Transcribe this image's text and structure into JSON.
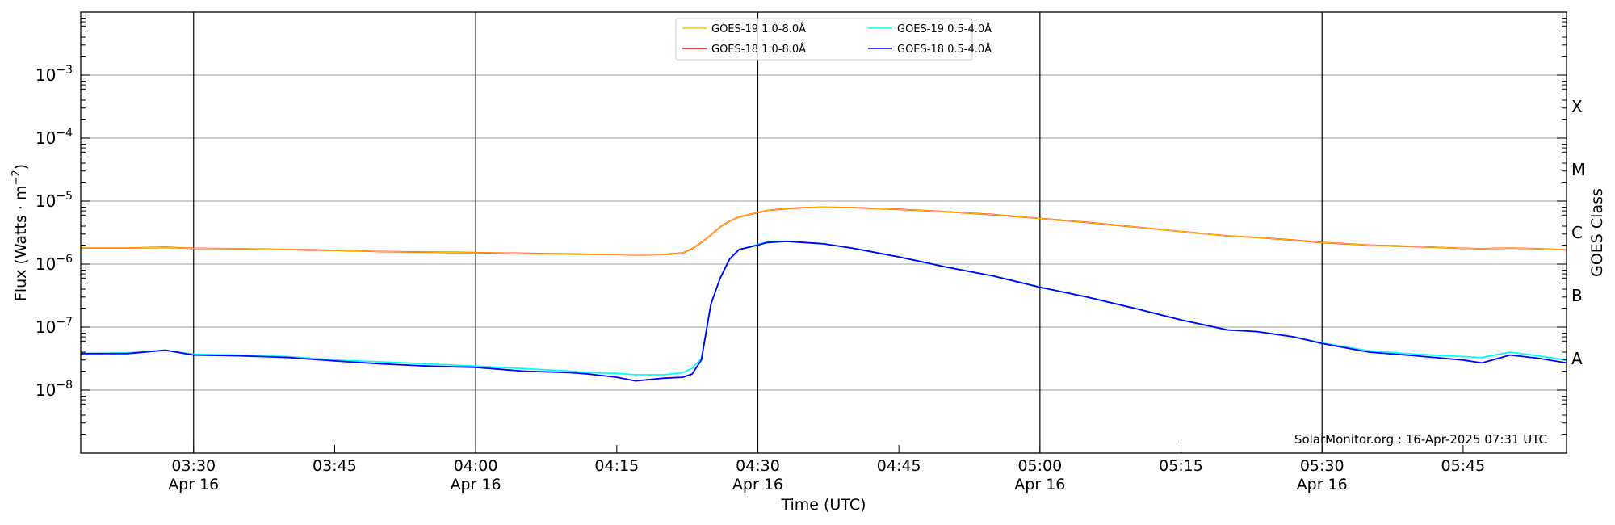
{
  "chart_data": {
    "type": "line",
    "title": "",
    "xlabel": "Time (UTC)",
    "ylabel": "Flux (Watts · m",
    "ylabel_sup": "−2",
    "ylabel_close": ")",
    "y2label": "GOES Class",
    "yscale": "log",
    "ylim": [
      1e-09,
      0.01
    ],
    "xlim_minutes": [
      198,
      356
    ],
    "grid": "horizontal",
    "legend_position": "top-center",
    "yticks": [
      {
        "exp": -3,
        "base": "10",
        "sup": "−3"
      },
      {
        "exp": -4,
        "base": "10",
        "sup": "−4"
      },
      {
        "exp": -5,
        "base": "10",
        "sup": "−5"
      },
      {
        "exp": -6,
        "base": "10",
        "sup": "−6"
      },
      {
        "exp": -7,
        "base": "10",
        "sup": "−7"
      },
      {
        "exp": -8,
        "base": "10",
        "sup": "−8"
      }
    ],
    "classes": [
      {
        "label": "X",
        "exp": -3.5
      },
      {
        "label": "M",
        "exp": -4.5
      },
      {
        "label": "C",
        "exp": -5.5
      },
      {
        "label": "B",
        "exp": -6.5
      },
      {
        "label": "A",
        "exp": -7.5
      }
    ],
    "xticks": [
      {
        "t": 210,
        "label": "03:30",
        "date": "Apr 16",
        "major": true
      },
      {
        "t": 225,
        "label": "03:45",
        "date": "",
        "major": false
      },
      {
        "t": 240,
        "label": "04:00",
        "date": "Apr 16",
        "major": true
      },
      {
        "t": 255,
        "label": "04:15",
        "date": "",
        "major": false
      },
      {
        "t": 270,
        "label": "04:30",
        "date": "Apr 16",
        "major": true
      },
      {
        "t": 285,
        "label": "04:45",
        "date": "",
        "major": false
      },
      {
        "t": 300,
        "label": "05:00",
        "date": "Apr 16",
        "major": true
      },
      {
        "t": 315,
        "label": "05:15",
        "date": "",
        "major": false
      },
      {
        "t": 330,
        "label": "05:30",
        "date": "Apr 16",
        "major": true
      },
      {
        "t": 345,
        "label": "05:45",
        "date": "",
        "major": false
      }
    ],
    "x_minutes": [
      198,
      203,
      207,
      210,
      215,
      220,
      225,
      230,
      235,
      240,
      245,
      250,
      252,
      255,
      257,
      260,
      262,
      263,
      264,
      265,
      266,
      267,
      268,
      270,
      271,
      273,
      275,
      277,
      280,
      285,
      290,
      295,
      300,
      305,
      310,
      315,
      320,
      323,
      327,
      330,
      335,
      340,
      345,
      347,
      350,
      353,
      356
    ],
    "series": [
      {
        "name": "GOES-19 1.0-8.0Å",
        "color": "#ffc400",
        "values": [
          1.8e-06,
          1.8e-06,
          1.85e-06,
          1.78e-06,
          1.75e-06,
          1.7e-06,
          1.65e-06,
          1.58e-06,
          1.55e-06,
          1.52e-06,
          1.48e-06,
          1.45e-06,
          1.43e-06,
          1.42e-06,
          1.4e-06,
          1.42e-06,
          1.5e-06,
          1.75e-06,
          2.2e-06,
          2.9e-06,
          3.9e-06,
          4.8e-06,
          5.6e-06,
          6.6e-06,
          7.1e-06,
          7.6e-06,
          7.9e-06,
          8e-06,
          7.9e-06,
          7.4e-06,
          6.8e-06,
          6.1e-06,
          5.3e-06,
          4.6e-06,
          3.9e-06,
          3.3e-06,
          2.8e-06,
          2.65e-06,
          2.4e-06,
          2.2e-06,
          2e-06,
          1.9e-06,
          1.78e-06,
          1.75e-06,
          1.8e-06,
          1.75e-06,
          1.68e-06
        ]
      },
      {
        "name": "GOES-18 1.0-8.0Å",
        "color": "#ff0000",
        "values": [
          1.8e-06,
          1.8e-06,
          1.85e-06,
          1.78e-06,
          1.75e-06,
          1.7e-06,
          1.65e-06,
          1.58e-06,
          1.55e-06,
          1.52e-06,
          1.48e-06,
          1.45e-06,
          1.43e-06,
          1.42e-06,
          1.4e-06,
          1.42e-06,
          1.5e-06,
          1.75e-06,
          2.2e-06,
          2.9e-06,
          3.9e-06,
          4.8e-06,
          5.6e-06,
          6.6e-06,
          7.1e-06,
          7.6e-06,
          7.9e-06,
          8e-06,
          7.9e-06,
          7.4e-06,
          6.8e-06,
          6.1e-06,
          5.3e-06,
          4.6e-06,
          3.9e-06,
          3.3e-06,
          2.8e-06,
          2.65e-06,
          2.4e-06,
          2.2e-06,
          2e-06,
          1.9e-06,
          1.78e-06,
          1.75e-06,
          1.8e-06,
          1.75e-06,
          1.68e-06
        ]
      },
      {
        "name": "GOES-19 0.5-4.0Å",
        "color": "#00ffff",
        "values": [
          3.8e-08,
          3.9e-08,
          4.3e-08,
          3.7e-08,
          3.6e-08,
          3.4e-08,
          3e-08,
          2.8e-08,
          2.6e-08,
          2.4e-08,
          2.2e-08,
          2e-08,
          1.9e-08,
          1.85e-08,
          1.75e-08,
          1.75e-08,
          1.9e-08,
          2.2e-08,
          3.2e-08,
          2.3e-07,
          6e-07,
          1.2e-06,
          1.7e-06,
          2.05e-06,
          2.25e-06,
          2.3e-06,
          2.2e-06,
          2.1e-06,
          1.8e-06,
          1.3e-06,
          9e-07,
          6.5e-07,
          4.3e-07,
          3e-07,
          2e-07,
          1.3e-07,
          9e-08,
          8.5e-08,
          7e-08,
          5.6e-08,
          4.2e-08,
          3.7e-08,
          3.4e-08,
          3.3e-08,
          4e-08,
          3.5e-08,
          3e-08
        ]
      },
      {
        "name": "GOES-18 0.5-4.0Å",
        "color": "#0000ff",
        "values": [
          3.8e-08,
          3.8e-08,
          4.3e-08,
          3.6e-08,
          3.5e-08,
          3.3e-08,
          2.9e-08,
          2.6e-08,
          2.4e-08,
          2.3e-08,
          2e-08,
          1.9e-08,
          1.8e-08,
          1.6e-08,
          1.4e-08,
          1.55e-08,
          1.6e-08,
          1.8e-08,
          3e-08,
          2.3e-07,
          6e-07,
          1.2e-06,
          1.7e-06,
          2e-06,
          2.2e-06,
          2.3e-06,
          2.2e-06,
          2.1e-06,
          1.8e-06,
          1.3e-06,
          9e-07,
          6.5e-07,
          4.3e-07,
          3e-07,
          2e-07,
          1.3e-07,
          9e-08,
          8.5e-08,
          7e-08,
          5.5e-08,
          4e-08,
          3.5e-08,
          3e-08,
          2.7e-08,
          3.6e-08,
          3.2e-08,
          2.7e-08
        ]
      }
    ],
    "annotation": "SolarMonitor.org : 16-Apr-2025 07:31 UTC"
  }
}
